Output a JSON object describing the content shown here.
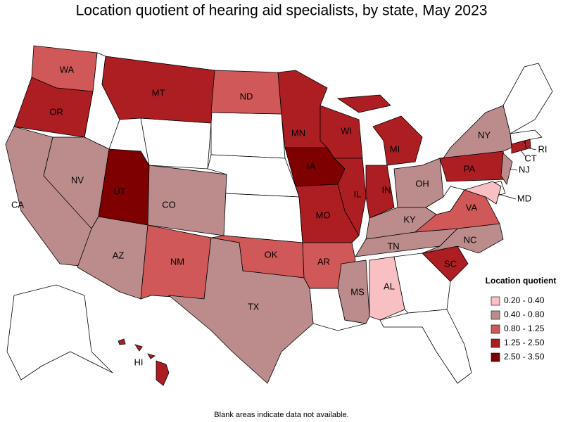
{
  "title": "Location quotient of hearing aid specialists, by state, May 2023",
  "legend": {
    "title": "Location quotient",
    "items": [
      {
        "label": "0.20 - 0.40",
        "color": "#f9c0c4"
      },
      {
        "label": "0.40 - 0.80",
        "color": "#bc8c8c"
      },
      {
        "label": "0.80 - 1.25",
        "color": "#d05858"
      },
      {
        "label": "1.25 - 2.50",
        "color": "#ad1e23"
      },
      {
        "label": "2.50 - 3.50",
        "color": "#7f0000"
      }
    ]
  },
  "states": [
    {
      "label": "WA",
      "color": "#d05858"
    },
    {
      "label": "OR",
      "color": "#ad1e23"
    },
    {
      "label": "CA",
      "color": "#bc8c8c"
    },
    {
      "label": "NV",
      "color": "#bc8c8c"
    },
    {
      "label": "MT",
      "color": "#ad1e23"
    },
    {
      "label": "UT",
      "color": "#7f0000"
    },
    {
      "label": "CO",
      "color": "#bc8c8c"
    },
    {
      "label": "AZ",
      "color": "#bc8c8c"
    },
    {
      "label": "NM",
      "color": "#d05858"
    },
    {
      "label": "ND",
      "color": "#d05858"
    },
    {
      "label": "OK",
      "color": "#d05858"
    },
    {
      "label": "TX",
      "color": "#bc8c8c"
    },
    {
      "label": "MN",
      "color": "#ad1e23"
    },
    {
      "label": "WI",
      "color": "#ad1e23"
    },
    {
      "label": "MI",
      "color": "#ad1e23"
    },
    {
      "label": "IA",
      "color": "#7f0000"
    },
    {
      "label": "MO",
      "color": "#ad1e23"
    },
    {
      "label": "IL",
      "color": "#ad1e23"
    },
    {
      "label": "IN",
      "color": "#ad1e23"
    },
    {
      "label": "OH",
      "color": "#bc8c8c"
    },
    {
      "label": "KY",
      "color": "#bc8c8c"
    },
    {
      "label": "TN",
      "color": "#bc8c8c"
    },
    {
      "label": "AR",
      "color": "#d05858"
    },
    {
      "label": "MS",
      "color": "#bc8c8c"
    },
    {
      "label": "AL",
      "color": "#f9c0c4"
    },
    {
      "label": "SC",
      "color": "#ad1e23"
    },
    {
      "label": "NC",
      "color": "#bc8c8c"
    },
    {
      "label": "VA",
      "color": "#d05858"
    },
    {
      "label": "PA",
      "color": "#ad1e23"
    },
    {
      "label": "NY",
      "color": "#bc8c8c"
    },
    {
      "label": "NJ",
      "color": "#bc8c8c"
    },
    {
      "label": "MD",
      "color": "#f9c0c4"
    },
    {
      "label": "CT",
      "color": "#ad1e23"
    },
    {
      "label": "RI",
      "color": "#ad1e23"
    },
    {
      "label": "HI",
      "color": "#ad1e23"
    }
  ],
  "note": "Blank areas indicate data not available."
}
